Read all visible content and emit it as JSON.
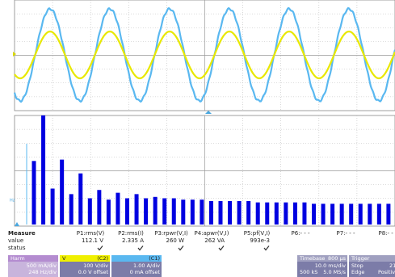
{
  "trace_label": "Hz",
  "harmonics": {
    "values": [
      4.6,
      7.9,
      2.6,
      4.7,
      2.2,
      3.7,
      1.9,
      2.5,
      1.8,
      2.3,
      1.9,
      2.2,
      1.9,
      2.0,
      1.9,
      1.9,
      1.8,
      1.8,
      1.8,
      1.7,
      1.7,
      1.7,
      1.7,
      1.7,
      1.6,
      1.6,
      1.6,
      1.6,
      1.6,
      1.6,
      1.5,
      1.5,
      1.5,
      1.5,
      1.5,
      1.5,
      1.5,
      1.5,
      1.5
    ]
  },
  "measure": {
    "title": "Measure",
    "row_labels": [
      "value",
      "status"
    ],
    "columns": [
      {
        "name": "P1:rms(V)",
        "value": "112.1 V",
        "status": true
      },
      {
        "name": "P2:rms(I)",
        "value": "2.335 A",
        "status": true
      },
      {
        "name": "P3:rpwr(V,I)",
        "value": "260 W",
        "status": true
      },
      {
        "name": "P4:apwr(V,I)",
        "value": "262 VA",
        "status": true
      },
      {
        "name": "P5:pf(V,I)",
        "value": "993e-3",
        "status": true
      },
      {
        "name": "P6:- - -"
      },
      {
        "name": "P7:- - -"
      },
      {
        "name": "P8:- - -"
      }
    ]
  },
  "channels": {
    "harm": {
      "title": "Harm",
      "scale": "500 mA/div",
      "freq": "248 Hz/div"
    },
    "v": {
      "title": "V",
      "source": "(C2)",
      "scale": "100 V/div",
      "offset": "0.0 V offset"
    },
    "c1": {
      "source": "(C1)",
      "scale": "1.00 A/div",
      "offset": "0 mA offset"
    }
  },
  "timebase": {
    "title": "Timebase",
    "delay": "800 µs",
    "scale": "10.0 ms/div",
    "samples": "500 kS",
    "rate": "5.0 MS/s"
  },
  "trigger": {
    "title": "Trigger",
    "level": "216",
    "mode": "Stop",
    "type": "Edge",
    "slope": "Positive"
  }
}
